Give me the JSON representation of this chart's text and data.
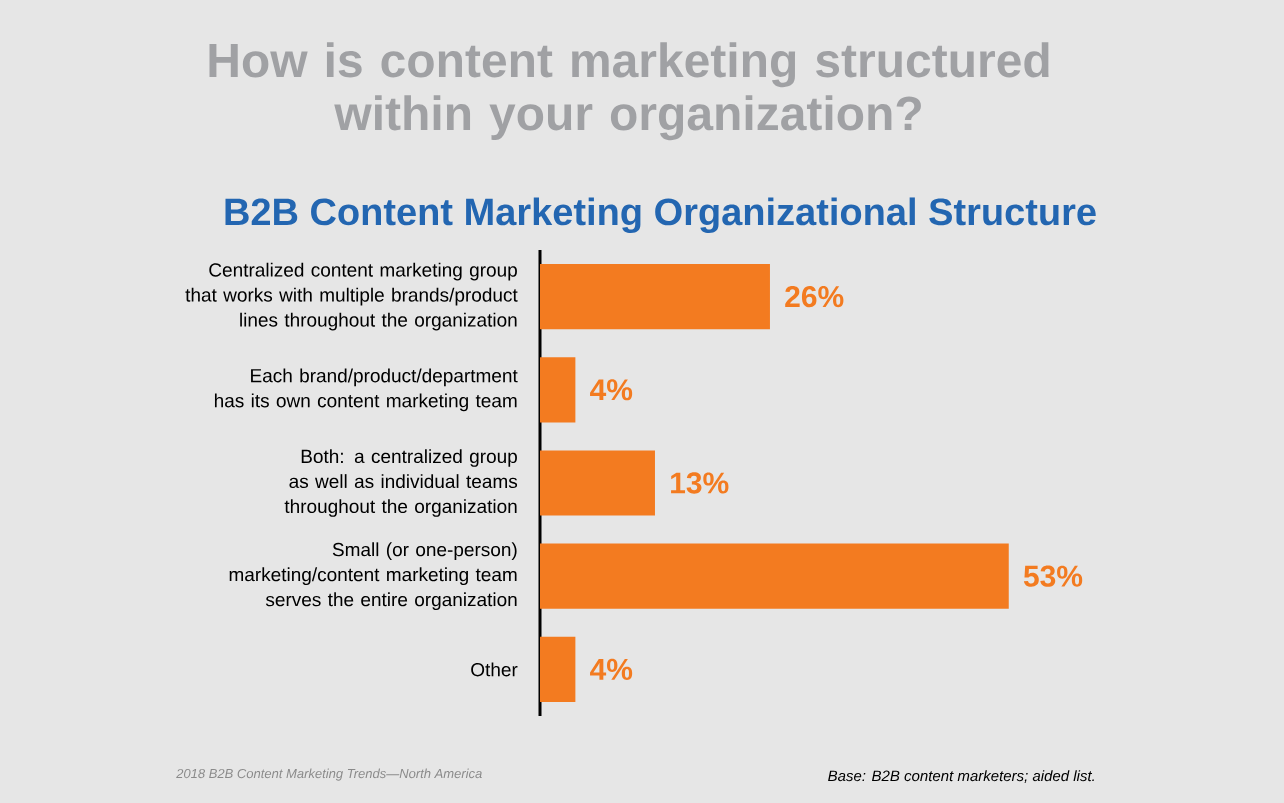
{
  "chart_data": {
    "type": "bar",
    "orientation": "horizontal",
    "title": "How is content marketing structured within your organization?",
    "subtitle": "B2B Content Marketing Organizational Structure",
    "categories": [
      "Centralized content marketing group that works with multiple brands/product lines throughout the organization",
      "Each brand/product/department has its own content marketing team",
      "Both: a centralized group as well as individual teams throughout the organization",
      "Small (or one-person) marketing/content marketing team serves the entire organization",
      "Other"
    ],
    "values": [
      26,
      4,
      13,
      53,
      4
    ],
    "color": "#f37b20",
    "value_labels": [
      "26%",
      "4%",
      "13%",
      "53%",
      "4%"
    ],
    "annotations": [
      "2018 B2B Content Marketing Trends—North America",
      "Base: B2B content marketers; aided list."
    ]
  }
}
